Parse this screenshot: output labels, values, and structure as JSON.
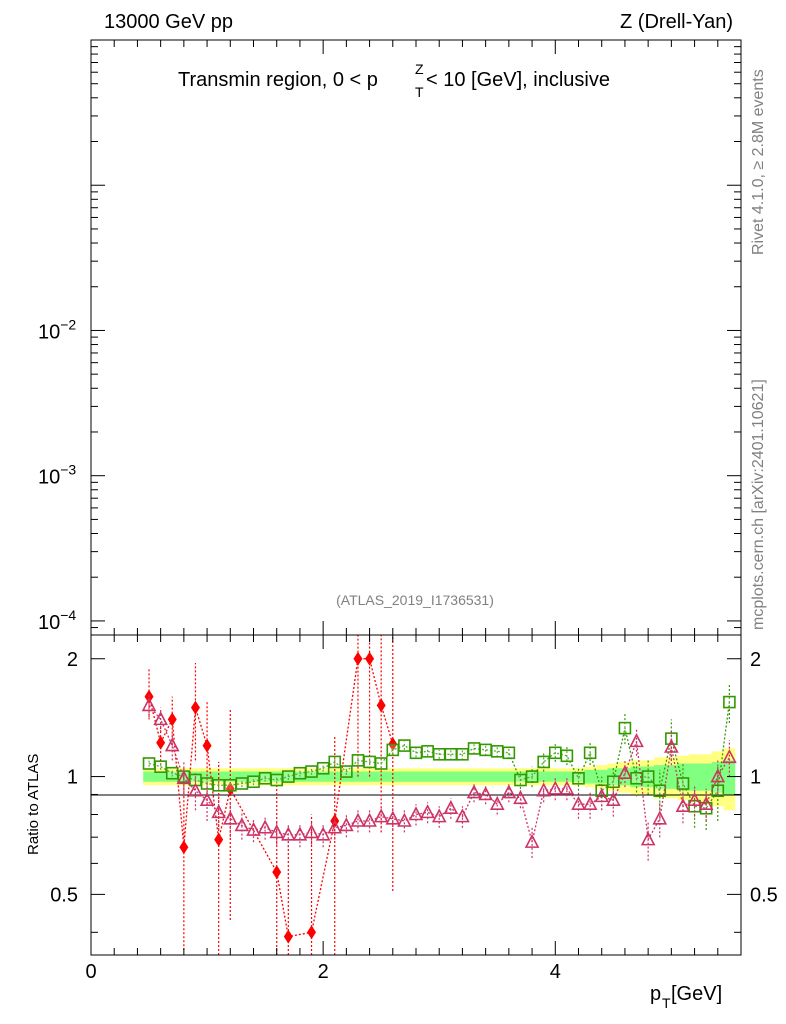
{
  "header": {
    "energy": "13000 GeV pp",
    "process": "Z (Drell-Yan)",
    "title_prefix": "Transmin region, 0 < p",
    "title_sup": "Z",
    "title_sub": "T",
    "title_suffix": " < 10 [GeV], inclusive"
  },
  "side": {
    "rivet": "Rivet 4.1.0, ≥ 2.8M events",
    "mcplots": "mcplots.cern.ch [arXiv:2401.10621]"
  },
  "analysis_label": "(ATLAS_2019_I1736531)",
  "colors": {
    "band_yellow": "#ffff80",
    "band_green": "#80ff80",
    "red": "#ff0000",
    "green": "#339900",
    "pink": "#cc3366"
  },
  "chart_data": [
    {
      "type": "scatter",
      "panel": "main",
      "yscale": "log",
      "ylim": [
        8e-05,
        1
      ],
      "xlim": [
        0,
        5.6
      ],
      "y_ticks": [
        {
          "base": "10",
          "exp": "−2",
          "value": 0.01
        },
        {
          "base": "10",
          "exp": "−3",
          "value": 0.001
        },
        {
          "base": "10",
          "exp": "−4",
          "value": 0.0001
        }
      ],
      "series": []
    },
    {
      "type": "scatter",
      "panel": "ratio",
      "ylabel": "Ratio to ATLAS",
      "xlabel": "p",
      "xlabel_sub": "T",
      "xlabel_unit": " [GeV]",
      "xlim": [
        0,
        5.6
      ],
      "ylim": [
        0.35,
        2.3
      ],
      "x_ticks": [
        "0",
        "2",
        "4"
      ],
      "x_tick_values": [
        0,
        2,
        4
      ],
      "y_ticks": [
        "0.5",
        "1",
        "2"
      ],
      "y_tick_values": [
        0.5,
        1,
        2
      ],
      "reference": 1,
      "band_x": [
        0.45,
        0.55,
        0.65,
        0.75,
        0.85,
        0.95,
        1.05,
        1.15,
        1.25,
        1.35,
        1.45,
        1.55,
        1.65,
        1.75,
        1.85,
        1.95,
        2.05,
        2.15,
        2.25,
        2.35,
        2.45,
        2.55,
        2.65,
        2.75,
        2.85,
        2.95,
        3.05,
        3.15,
        3.25,
        3.35,
        3.45,
        3.55,
        3.65,
        3.75,
        3.85,
        3.95,
        4.05,
        4.15,
        4.25,
        4.35,
        4.45,
        4.55,
        4.65,
        4.75,
        4.85,
        4.95,
        5.05,
        5.15,
        5.25,
        5.35,
        5.45,
        5.55
      ],
      "band_yellow_halfwidth": [
        0.05,
        0.05,
        0.05,
        0.05,
        0.05,
        0.05,
        0.05,
        0.05,
        0.05,
        0.05,
        0.05,
        0.05,
        0.05,
        0.05,
        0.05,
        0.05,
        0.05,
        0.05,
        0.05,
        0.05,
        0.05,
        0.05,
        0.05,
        0.05,
        0.05,
        0.05,
        0.05,
        0.05,
        0.05,
        0.05,
        0.05,
        0.05,
        0.05,
        0.05,
        0.05,
        0.05,
        0.05,
        0.05,
        0.06,
        0.07,
        0.08,
        0.09,
        0.1,
        0.1,
        0.12,
        0.12,
        0.13,
        0.14,
        0.14,
        0.16,
        0.18,
        0.2
      ],
      "band_green_halfwidth": [
        0.03,
        0.03,
        0.03,
        0.03,
        0.03,
        0.03,
        0.03,
        0.03,
        0.03,
        0.03,
        0.03,
        0.03,
        0.03,
        0.03,
        0.03,
        0.03,
        0.03,
        0.03,
        0.03,
        0.03,
        0.03,
        0.03,
        0.03,
        0.03,
        0.03,
        0.03,
        0.03,
        0.03,
        0.03,
        0.03,
        0.03,
        0.03,
        0.03,
        0.03,
        0.03,
        0.03,
        0.03,
        0.03,
        0.04,
        0.04,
        0.05,
        0.05,
        0.06,
        0.06,
        0.07,
        0.07,
        0.08,
        0.08,
        0.08,
        0.09,
        0.1,
        0.1
      ],
      "series": [
        {
          "name": "red diamonds",
          "marker": "diamond",
          "x": [
            0.5,
            0.6,
            0.7,
            0.8,
            0.9,
            1.0,
            1.1,
            1.2,
            1.6,
            1.7,
            1.9,
            2.1,
            2.3,
            2.4,
            2.5,
            2.6
          ],
          "y": [
            1.6,
            1.22,
            1.4,
            0.66,
            1.5,
            1.2,
            0.69,
            0.93,
            0.57,
            0.39,
            0.4,
            0.77,
            2.0,
            2.0,
            1.52,
            1.21
          ],
          "err_lo": [
            0.2,
            0.15,
            0.2,
            0.3,
            0.4,
            0.35,
            0.4,
            0.5,
            0.25,
            0.05,
            0.05,
            0.45,
            1.0,
            1.0,
            0.8,
            0.7
          ],
          "err_hi": [
            0.3,
            0.15,
            0.2,
            0.4,
            0.45,
            0.35,
            0.4,
            0.55,
            0.4,
            0.3,
            0.4,
            0.5,
            0.8,
            0.8,
            0.9,
            1.3
          ]
        },
        {
          "name": "green squares",
          "marker": "square",
          "x": [
            0.5,
            0.6,
            0.7,
            0.8,
            0.9,
            1.0,
            1.1,
            1.2,
            1.3,
            1.4,
            1.5,
            1.6,
            1.7,
            1.8,
            1.9,
            2.0,
            2.1,
            2.2,
            2.3,
            2.4,
            2.5,
            2.6,
            2.7,
            2.8,
            2.9,
            3.0,
            3.1,
            3.2,
            3.3,
            3.4,
            3.5,
            3.6,
            3.7,
            3.8,
            3.9,
            4.0,
            4.1,
            4.2,
            4.3,
            4.4,
            4.5,
            4.6,
            4.7,
            4.8,
            4.9,
            5.0,
            5.1,
            5.2,
            5.3,
            5.4,
            5.5
          ],
          "y": [
            1.08,
            1.06,
            1.02,
            1.0,
            0.98,
            0.96,
            0.95,
            0.95,
            0.96,
            0.97,
            0.99,
            0.98,
            1.0,
            1.02,
            1.03,
            1.05,
            1.09,
            1.03,
            1.1,
            1.09,
            1.08,
            1.17,
            1.2,
            1.15,
            1.16,
            1.14,
            1.14,
            1.14,
            1.18,
            1.17,
            1.16,
            1.15,
            0.98,
            1.0,
            1.09,
            1.15,
            1.13,
            0.99,
            1.15,
            0.92,
            0.97,
            1.33,
            0.99,
            1.0,
            0.92,
            1.25,
            0.96,
            0.84,
            0.83,
            0.92,
            1.55
          ],
          "err_lo": [
            0.02,
            0.02,
            0.02,
            0.02,
            0.02,
            0.02,
            0.02,
            0.02,
            0.02,
            0.02,
            0.02,
            0.02,
            0.02,
            0.02,
            0.02,
            0.02,
            0.02,
            0.02,
            0.02,
            0.02,
            0.03,
            0.03,
            0.03,
            0.03,
            0.03,
            0.03,
            0.04,
            0.04,
            0.04,
            0.04,
            0.04,
            0.04,
            0.05,
            0.06,
            0.06,
            0.06,
            0.06,
            0.07,
            0.08,
            0.08,
            0.09,
            0.12,
            0.1,
            0.1,
            0.12,
            0.15,
            0.12,
            0.1,
            0.1,
            0.15,
            0.18
          ],
          "err_hi": [
            0.02,
            0.02,
            0.02,
            0.02,
            0.02,
            0.02,
            0.02,
            0.02,
            0.02,
            0.02,
            0.02,
            0.02,
            0.02,
            0.02,
            0.02,
            0.02,
            0.02,
            0.02,
            0.02,
            0.02,
            0.03,
            0.03,
            0.03,
            0.03,
            0.03,
            0.03,
            0.04,
            0.04,
            0.04,
            0.04,
            0.04,
            0.04,
            0.05,
            0.06,
            0.06,
            0.06,
            0.06,
            0.07,
            0.08,
            0.08,
            0.09,
            0.12,
            0.1,
            0.1,
            0.12,
            0.15,
            0.12,
            0.1,
            0.1,
            0.15,
            0.18
          ]
        },
        {
          "name": "pink triangles",
          "marker": "triangle",
          "x": [
            0.5,
            0.6,
            0.7,
            0.8,
            0.9,
            1.0,
            1.1,
            1.2,
            1.3,
            1.4,
            1.5,
            1.6,
            1.7,
            1.8,
            1.9,
            2.0,
            2.1,
            2.2,
            2.3,
            2.4,
            2.5,
            2.6,
            2.7,
            2.8,
            2.9,
            3.0,
            3.1,
            3.2,
            3.3,
            3.4,
            3.5,
            3.6,
            3.7,
            3.8,
            3.9,
            4.0,
            4.1,
            4.2,
            4.3,
            4.4,
            4.5,
            4.6,
            4.7,
            4.8,
            4.9,
            5.0,
            5.1,
            5.2,
            5.3,
            5.4,
            5.5
          ],
          "y": [
            1.52,
            1.4,
            1.2,
            0.99,
            0.92,
            0.87,
            0.81,
            0.78,
            0.75,
            0.73,
            0.74,
            0.72,
            0.71,
            0.71,
            0.72,
            0.71,
            0.74,
            0.75,
            0.77,
            0.77,
            0.79,
            0.78,
            0.77,
            0.8,
            0.81,
            0.79,
            0.83,
            0.79,
            0.91,
            0.9,
            0.85,
            0.91,
            0.88,
            0.68,
            0.92,
            0.93,
            0.93,
            0.85,
            0.85,
            0.89,
            0.87,
            1.02,
            1.23,
            0.69,
            0.78,
            1.19,
            0.84,
            0.87,
            0.85,
            1.0,
            1.12
          ],
          "err_lo": [
            0.1,
            0.1,
            0.1,
            0.1,
            0.1,
            0.1,
            0.08,
            0.08,
            0.06,
            0.05,
            0.05,
            0.05,
            0.05,
            0.05,
            0.05,
            0.05,
            0.05,
            0.05,
            0.05,
            0.05,
            0.05,
            0.05,
            0.05,
            0.05,
            0.05,
            0.05,
            0.05,
            0.05,
            0.05,
            0.05,
            0.05,
            0.05,
            0.05,
            0.06,
            0.06,
            0.06,
            0.06,
            0.07,
            0.07,
            0.07,
            0.08,
            0.08,
            0.1,
            0.08,
            0.08,
            0.12,
            0.08,
            0.08,
            0.08,
            0.1,
            0.12
          ],
          "err_hi": [
            0.1,
            0.1,
            0.1,
            0.1,
            0.1,
            0.1,
            0.08,
            0.08,
            0.06,
            0.05,
            0.05,
            0.05,
            0.05,
            0.05,
            0.05,
            0.05,
            0.05,
            0.05,
            0.05,
            0.05,
            0.05,
            0.05,
            0.05,
            0.05,
            0.05,
            0.05,
            0.05,
            0.05,
            0.05,
            0.05,
            0.05,
            0.05,
            0.05,
            0.06,
            0.06,
            0.06,
            0.06,
            0.07,
            0.07,
            0.07,
            0.08,
            0.08,
            0.1,
            0.08,
            0.08,
            0.12,
            0.08,
            0.08,
            0.08,
            0.1,
            0.12
          ]
        }
      ]
    }
  ]
}
